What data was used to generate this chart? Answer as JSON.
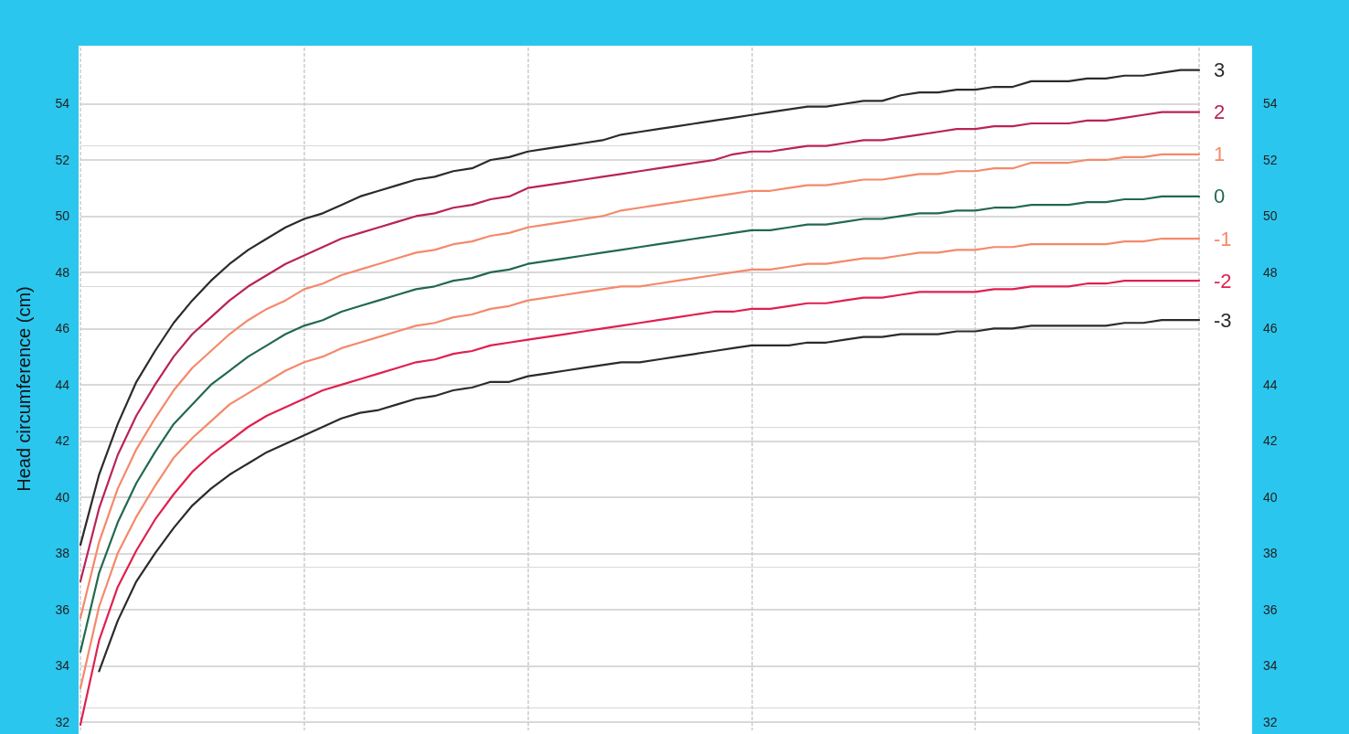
{
  "chart_data": {
    "type": "line",
    "ylabel": "Head circumference (cm)",
    "categories": [
      null,
      null,
      null,
      null,
      null,
      null,
      null,
      null,
      null,
      null,
      null,
      null,
      null,
      null,
      null,
      null,
      null,
      null,
      null,
      null,
      null,
      null,
      null,
      null,
      null,
      null,
      null,
      null,
      null,
      null,
      null,
      null,
      null,
      null,
      null,
      null,
      null,
      null,
      null,
      null,
      null,
      null,
      null,
      null,
      null,
      null,
      null,
      null,
      null,
      null,
      null,
      null,
      null,
      null,
      null,
      null,
      null,
      null,
      null,
      null,
      null
    ],
    "ylim": [
      31.7,
      56
    ],
    "yticks": [
      32,
      34,
      36,
      38,
      40,
      42,
      44,
      46,
      48,
      50,
      52,
      54
    ],
    "y2lim": [
      31.7,
      56
    ],
    "y2ticks": [
      32,
      34,
      36,
      38,
      40,
      42,
      44,
      46,
      48,
      50,
      52,
      54
    ],
    "grid": true,
    "tick_labels": "y",
    "marker": "none",
    "line_style": "solid",
    "series": [
      {
        "name": "3",
        "color": "#2b2b2b",
        "values": [
          38.3,
          40.8,
          42.6,
          44.1,
          45.2,
          46.2,
          47.0,
          47.7,
          48.3,
          48.8,
          49.2,
          49.6,
          49.9,
          50.1,
          50.4,
          50.7,
          50.9,
          51.1,
          51.3,
          51.4,
          51.6,
          51.7,
          52.0,
          52.1,
          52.3,
          52.4,
          52.5,
          52.6,
          52.7,
          52.9,
          53.0,
          53.1,
          53.2,
          53.3,
          53.4,
          53.5,
          53.6,
          53.7,
          53.8,
          53.9,
          53.9,
          54.0,
          54.1,
          54.1,
          54.3,
          54.4,
          54.4,
          54.5,
          54.5,
          54.6,
          54.6,
          54.8,
          54.8,
          54.8,
          54.9,
          54.9,
          55.0,
          55.0,
          55.1,
          55.2,
          55.2
        ]
      },
      {
        "name": "2",
        "color": "#b9235a",
        "values": [
          37.0,
          39.6,
          41.5,
          42.9,
          44.0,
          45.0,
          45.8,
          46.4,
          47.0,
          47.5,
          47.9,
          48.3,
          48.6,
          48.9,
          49.2,
          49.4,
          49.6,
          49.8,
          50.0,
          50.1,
          50.3,
          50.4,
          50.6,
          50.7,
          51.0,
          51.1,
          51.2,
          51.3,
          51.4,
          51.5,
          51.6,
          51.7,
          51.8,
          51.9,
          52.0,
          52.2,
          52.3,
          52.3,
          52.4,
          52.5,
          52.5,
          52.6,
          52.7,
          52.7,
          52.8,
          52.9,
          53.0,
          53.1,
          53.1,
          53.2,
          53.2,
          53.3,
          53.3,
          53.3,
          53.4,
          53.4,
          53.5,
          53.6,
          53.7,
          53.7,
          53.7
        ]
      },
      {
        "name": "1",
        "color": "#f4896b",
        "values": [
          35.7,
          38.4,
          40.3,
          41.7,
          42.8,
          43.8,
          44.6,
          45.2,
          45.8,
          46.3,
          46.7,
          47.0,
          47.4,
          47.6,
          47.9,
          48.1,
          48.3,
          48.5,
          48.7,
          48.8,
          49.0,
          49.1,
          49.3,
          49.4,
          49.6,
          49.7,
          49.8,
          49.9,
          50.0,
          50.2,
          50.3,
          50.4,
          50.5,
          50.6,
          50.7,
          50.8,
          50.9,
          50.9,
          51.0,
          51.1,
          51.1,
          51.2,
          51.3,
          51.3,
          51.4,
          51.5,
          51.5,
          51.6,
          51.6,
          51.7,
          51.7,
          51.9,
          51.9,
          51.9,
          52.0,
          52.0,
          52.1,
          52.1,
          52.2,
          52.2,
          52.2
        ]
      },
      {
        "name": "0",
        "color": "#22694f",
        "values": [
          34.5,
          37.3,
          39.1,
          40.5,
          41.6,
          42.6,
          43.3,
          44.0,
          44.5,
          45.0,
          45.4,
          45.8,
          46.1,
          46.3,
          46.6,
          46.8,
          47.0,
          47.2,
          47.4,
          47.5,
          47.7,
          47.8,
          48.0,
          48.1,
          48.3,
          48.4,
          48.5,
          48.6,
          48.7,
          48.8,
          48.9,
          49.0,
          49.1,
          49.2,
          49.3,
          49.4,
          49.5,
          49.5,
          49.6,
          49.7,
          49.7,
          49.8,
          49.9,
          49.9,
          50.0,
          50.1,
          50.1,
          50.2,
          50.2,
          50.3,
          50.3,
          50.4,
          50.4,
          50.4,
          50.5,
          50.5,
          50.6,
          50.6,
          50.7,
          50.7,
          50.7
        ]
      },
      {
        "name": "-1",
        "color": "#f4896b",
        "values": [
          33.2,
          36.1,
          38.0,
          39.3,
          40.4,
          41.4,
          42.1,
          42.7,
          43.3,
          43.7,
          44.1,
          44.5,
          44.8,
          45.0,
          45.3,
          45.5,
          45.7,
          45.9,
          46.1,
          46.2,
          46.4,
          46.5,
          46.7,
          46.8,
          47.0,
          47.1,
          47.2,
          47.3,
          47.4,
          47.5,
          47.5,
          47.6,
          47.7,
          47.8,
          47.9,
          48.0,
          48.1,
          48.1,
          48.2,
          48.3,
          48.3,
          48.4,
          48.5,
          48.5,
          48.6,
          48.7,
          48.7,
          48.8,
          48.8,
          48.9,
          48.9,
          49.0,
          49.0,
          49.0,
          49.0,
          49.0,
          49.1,
          49.1,
          49.2,
          49.2,
          49.2
        ]
      },
      {
        "name": "-2",
        "color": "#e0204f",
        "values": [
          31.9,
          34.9,
          36.8,
          38.1,
          39.2,
          40.1,
          40.9,
          41.5,
          42.0,
          42.5,
          42.9,
          43.2,
          43.5,
          43.8,
          44.0,
          44.2,
          44.4,
          44.6,
          44.8,
          44.9,
          45.1,
          45.2,
          45.4,
          45.5,
          45.6,
          45.7,
          45.8,
          45.9,
          46.0,
          46.1,
          46.2,
          46.3,
          46.4,
          46.5,
          46.6,
          46.6,
          46.7,
          46.7,
          46.8,
          46.9,
          46.9,
          47.0,
          47.1,
          47.1,
          47.2,
          47.3,
          47.3,
          47.3,
          47.3,
          47.4,
          47.4,
          47.5,
          47.5,
          47.5,
          47.6,
          47.6,
          47.7,
          47.7,
          47.7,
          47.7,
          47.7
        ]
      },
      {
        "name": "-3",
        "color": "#2b2b2b",
        "values": [
          null,
          33.8,
          35.6,
          37.0,
          38.0,
          38.9,
          39.7,
          40.3,
          40.8,
          41.2,
          41.6,
          41.9,
          42.2,
          42.5,
          42.8,
          43.0,
          43.1,
          43.3,
          43.5,
          43.6,
          43.8,
          43.9,
          44.1,
          44.1,
          44.3,
          44.4,
          44.5,
          44.6,
          44.7,
          44.8,
          44.8,
          44.9,
          45.0,
          45.1,
          45.2,
          45.3,
          45.4,
          45.4,
          45.4,
          45.5,
          45.5,
          45.6,
          45.7,
          45.7,
          45.8,
          45.8,
          45.8,
          45.9,
          45.9,
          46.0,
          46.0,
          46.1,
          46.1,
          46.1,
          46.1,
          46.1,
          46.2,
          46.2,
          46.3,
          46.3,
          46.3
        ]
      }
    ]
  }
}
